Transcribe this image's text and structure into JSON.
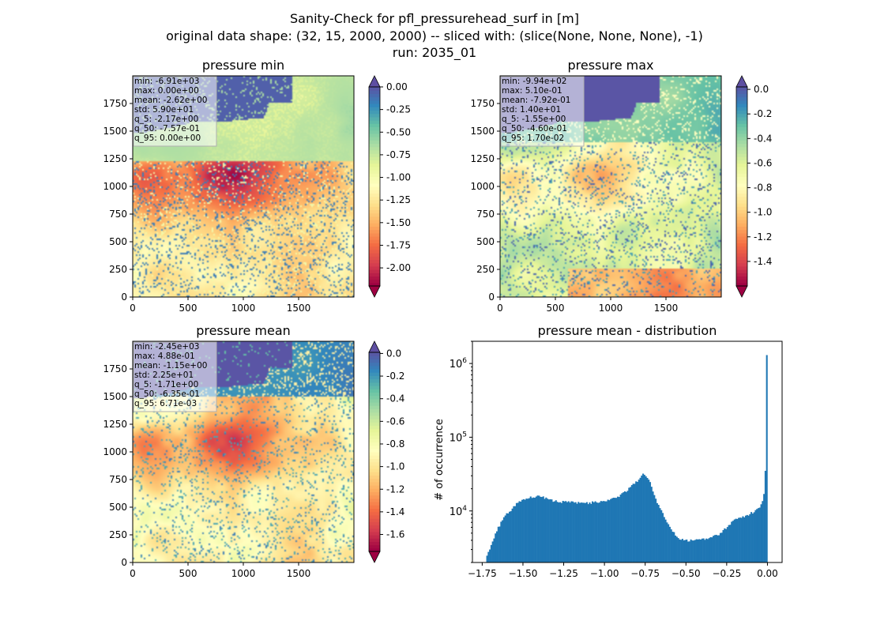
{
  "suptitle": {
    "line1": "Sanity-Check for pfl_pressurehead_surf in [m]",
    "line2": "original data shape: (32, 15, 2000, 2000) -- sliced with: (slice(None, None, None), -1)",
    "line3": "run: 2035_01"
  },
  "chart_data": [
    {
      "type": "heatmap",
      "title": "pressure min",
      "colormap": "Spectral",
      "xlim": [
        0,
        2000
      ],
      "ylim": [
        0,
        2000
      ],
      "xticks": [
        "0",
        "500",
        "1000",
        "1500"
      ],
      "yticks": [
        "0",
        "250",
        "500",
        "750",
        "1000",
        "1250",
        "1500",
        "1750"
      ],
      "colorbar": {
        "range": [
          -2.2,
          0.0
        ],
        "extend": "both",
        "ticks": [
          "0.00",
          "-0.25",
          "-0.50",
          "-0.75",
          "-1.00",
          "-1.25",
          "-1.50",
          "-1.75",
          "-2.00"
        ]
      },
      "stats": [
        "min: -6.91e+03",
        "max: 0.00e+00",
        "mean: -2.62e+00",
        "std: 5.90e+01",
        "q_5: -2.17e+00",
        "q_50: -7.57e-01",
        "q_95: 0.00e+00"
      ]
    },
    {
      "type": "heatmap",
      "title": "pressure max",
      "colormap": "Spectral",
      "xlim": [
        0,
        2000
      ],
      "ylim": [
        0,
        2000
      ],
      "xticks": [
        "0",
        "500",
        "1000",
        "1500"
      ],
      "yticks": [
        "0",
        "250",
        "500",
        "750",
        "1000",
        "1250",
        "1500",
        "1750"
      ],
      "colorbar": {
        "range": [
          -1.6,
          0.02
        ],
        "extend": "both",
        "ticks": [
          "0.0",
          "-0.2",
          "-0.4",
          "-0.6",
          "-0.8",
          "-1.0",
          "-1.2",
          "-1.4"
        ]
      },
      "stats": [
        "min: -9.94e+02",
        "max: 5.10e-01",
        "mean: -7.92e-01",
        "std: 1.40e+01",
        "q_5: -1.55e+00",
        "q_50: -4.60e-01",
        "q_95: 1.70e-02"
      ]
    },
    {
      "type": "heatmap",
      "title": "pressure mean",
      "colormap": "Spectral",
      "xlim": [
        0,
        2000
      ],
      "ylim": [
        0,
        2000
      ],
      "xticks": [
        "0",
        "500",
        "1000",
        "1500"
      ],
      "yticks": [
        "0",
        "250",
        "500",
        "750",
        "1000",
        "1250",
        "1500",
        "1750"
      ],
      "colorbar": {
        "range": [
          -1.75,
          0.01
        ],
        "extend": "both",
        "ticks": [
          "0.0",
          "-0.2",
          "-0.4",
          "-0.6",
          "-0.8",
          "-1.0",
          "-1.2",
          "-1.4",
          "-1.6"
        ]
      },
      "stats": [
        "min: -2.45e+03",
        "max: 4.88e-01",
        "mean: -1.15e+00",
        "std: 2.25e+01",
        "q_5: -1.71e+00",
        "q_50: -6.35e-01",
        "q_95: 6.71e-03"
      ]
    },
    {
      "type": "bar",
      "title": "pressure mean - distribution",
      "xlabel": "",
      "ylabel": "# of occurrence",
      "yscale": "log",
      "xlim": [
        -1.81,
        0.09
      ],
      "ylim": [
        2000,
        2000000
      ],
      "xticks": [
        "−1.75",
        "−1.50",
        "−1.25",
        "−1.00",
        "−0.75",
        "−0.50",
        "−0.25",
        "0.00"
      ],
      "xtick_values": [
        -1.75,
        -1.5,
        -1.25,
        -1.0,
        -0.75,
        -0.5,
        -0.25,
        0.0
      ],
      "yticks": [
        {
          "base": "10",
          "exp": "4",
          "value": 10000
        },
        {
          "base": "10",
          "exp": "5",
          "value": 100000
        },
        {
          "base": "10",
          "exp": "6",
          "value": 1000000
        }
      ],
      "bar_color": "#1f77b4",
      "profile_x": [
        -1.72,
        -1.71,
        -1.7,
        -1.68,
        -1.66,
        -1.63,
        -1.6,
        -1.56,
        -1.53,
        -1.5,
        -1.45,
        -1.4,
        -1.3,
        -1.2,
        -1.1,
        -1.0,
        -0.95,
        -0.9,
        -0.85,
        -0.8,
        -0.78,
        -0.76,
        -0.74,
        -0.72,
        -0.7,
        -0.67,
        -0.64,
        -0.62,
        -0.6,
        -0.58,
        -0.56,
        -0.54,
        -0.5,
        -0.45,
        -0.4,
        -0.35,
        -0.3,
        -0.25,
        -0.2,
        -0.15,
        -0.1,
        -0.06,
        -0.04,
        -0.025,
        -0.015,
        -0.008,
        -0.003,
        0.0,
        0.002
      ],
      "profile_y": [
        2400,
        2800,
        3300,
        4200,
        5500,
        7200,
        9000,
        11000,
        13000,
        14500,
        15500,
        16000,
        13500,
        13000,
        12800,
        13500,
        14500,
        16500,
        20000,
        25000,
        29000,
        32000,
        30000,
        24000,
        17000,
        12000,
        9000,
        7500,
        6200,
        5200,
        4500,
        4200,
        4000,
        4000,
        4100,
        4300,
        4800,
        6000,
        7800,
        8300,
        9300,
        10500,
        12000,
        15000,
        20000,
        35000,
        120000,
        1300000,
        30000
      ]
    }
  ]
}
